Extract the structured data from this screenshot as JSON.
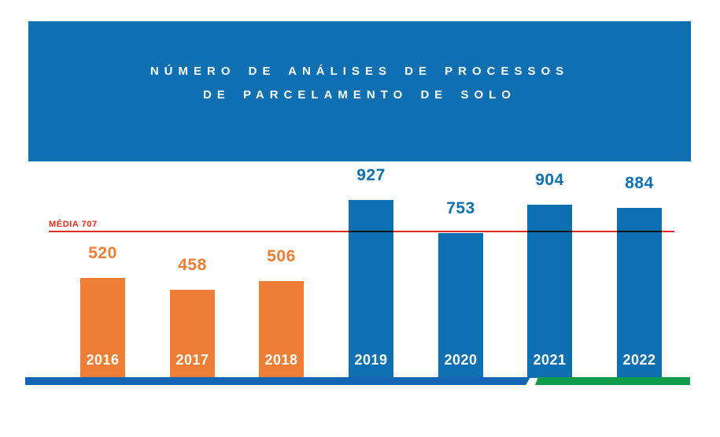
{
  "header": {
    "title_line1": "NÚMERO DE ANÁLISES DE PROCESSOS",
    "title_line2": "DE PARCELAMENTO DE SOLO"
  },
  "average": {
    "label": "MÉDIA 707",
    "value": 707
  },
  "chart_data": {
    "type": "bar",
    "title": "Número de análises de processos de parcelamento de solo",
    "categories": [
      "2016",
      "2017",
      "2018",
      "2019",
      "2020",
      "2021",
      "2022"
    ],
    "values": [
      520,
      458,
      506,
      927,
      753,
      904,
      884
    ],
    "average": 707,
    "average_label": "MÉDIA 707",
    "bar_colors": [
      "#ee7e35",
      "#ee7e35",
      "#ee7e35",
      "#0e70b1",
      "#0e70b1",
      "#0e70b1",
      "#0e70b1"
    ],
    "value_label_position": "above-bar",
    "category_label_position": "inside-bar-bottom",
    "ylim": [
      0,
      1000
    ],
    "grid": false,
    "legend": "none"
  },
  "colors": {
    "background": "#ffffff",
    "header_bg": "#0e70b1",
    "title_text": "#ffffff",
    "bar_orange": "#ee7e35",
    "bar_blue": "#0e70b1",
    "year_text": "#ffffff",
    "average_red": "#e02d21",
    "footer_accent_blue": "#1565b4",
    "footer_accent_green": "#119b4d"
  }
}
